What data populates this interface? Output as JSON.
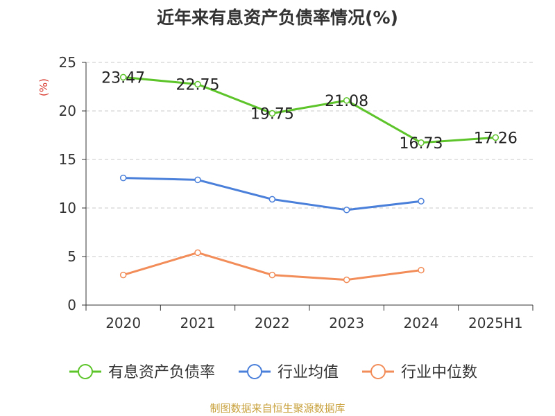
{
  "title": "近年来有息资产负债率情况(%)",
  "source_note": "制图数据来自恒生聚源数据库",
  "colors": {
    "series_1": "#5dc42a",
    "series_2": "#4a7fda",
    "series_3": "#f28c58",
    "ylabel": "#d93a2f",
    "source": "#c8a13c"
  },
  "chart_data": {
    "type": "line",
    "title": "近年来有息资产负债率情况(%)",
    "xlabel": "",
    "ylabel": "(%)",
    "categories": [
      "2020",
      "2021",
      "2022",
      "2023",
      "2024",
      "2025H1"
    ],
    "ylim": [
      0,
      25
    ],
    "yticks": [
      0,
      5,
      10,
      15,
      20,
      25
    ],
    "grid": true,
    "legend": "bottom",
    "series": [
      {
        "name": "有息资产负债率",
        "values": [
          23.47,
          22.75,
          19.75,
          21.08,
          16.73,
          17.26
        ],
        "labels": [
          "23.47",
          "22.75",
          "19.75",
          "21.08",
          "16.73",
          "17.26"
        ],
        "color": "#5dc42a"
      },
      {
        "name": "行业均值",
        "values": [
          13.1,
          12.9,
          10.9,
          9.8,
          10.7,
          null
        ],
        "color": "#4a7fda"
      },
      {
        "name": "行业中位数",
        "values": [
          3.1,
          5.4,
          3.1,
          2.6,
          3.6,
          null
        ],
        "color": "#f28c58"
      }
    ]
  }
}
